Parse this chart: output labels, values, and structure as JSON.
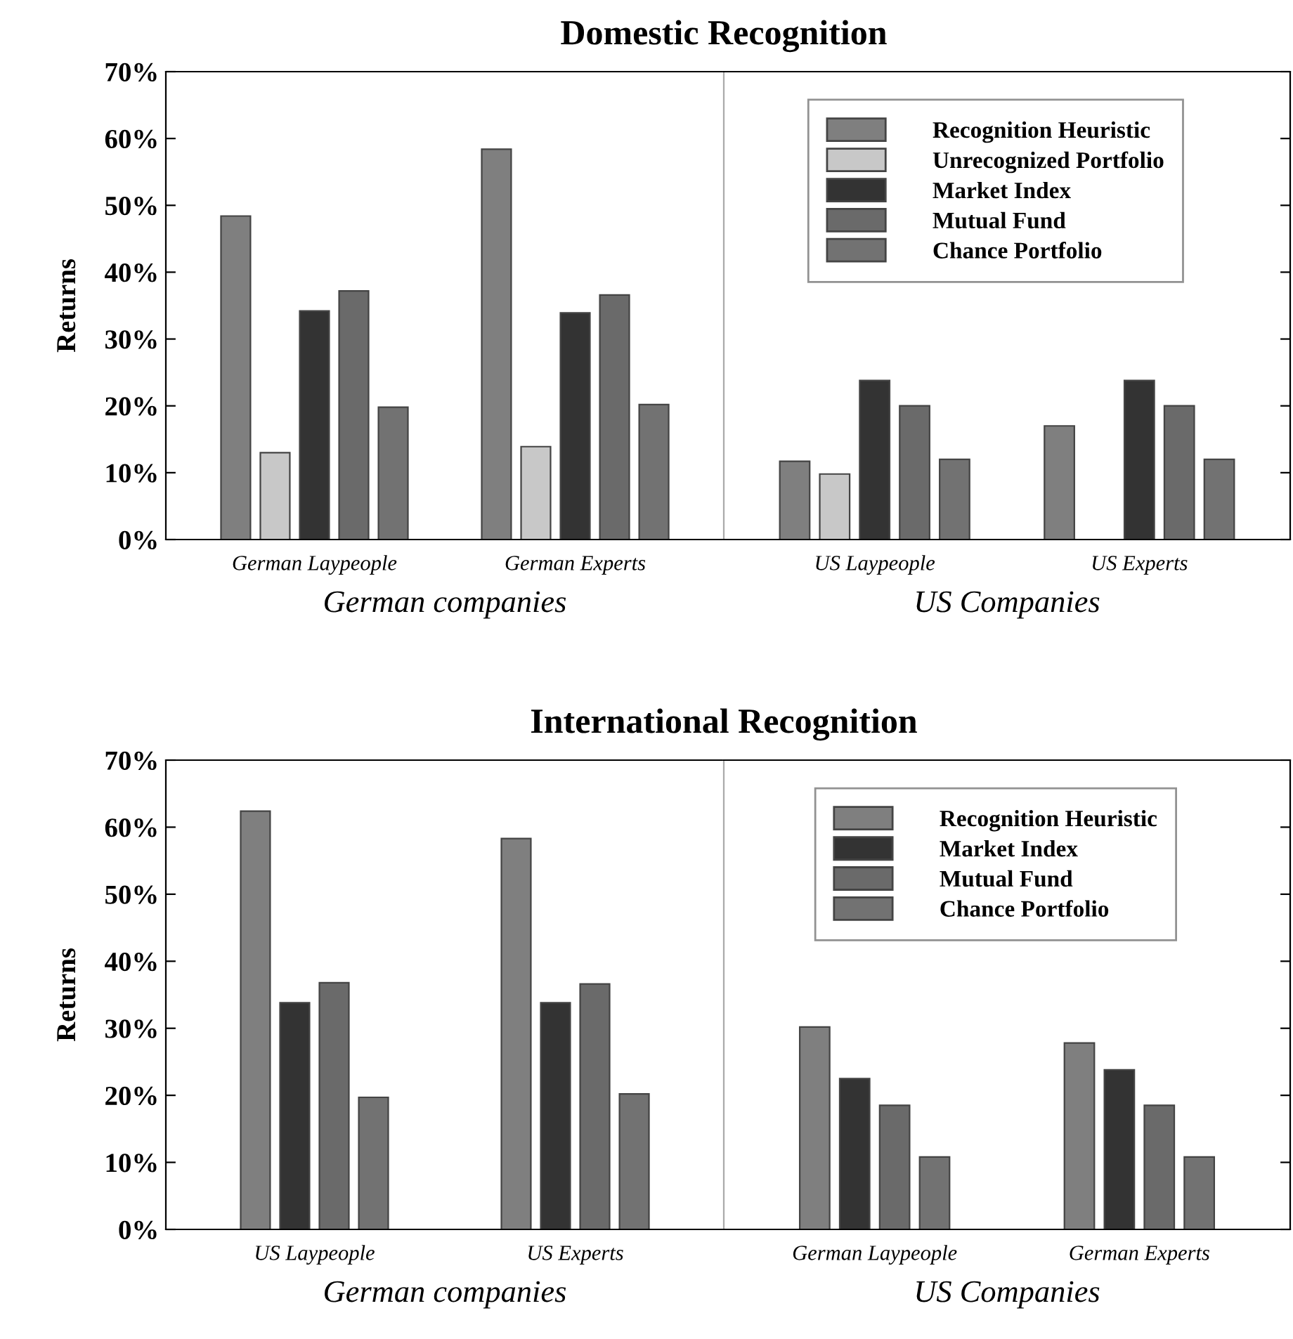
{
  "chart_data": [
    {
      "type": "bar",
      "title": "Domestic Recognition",
      "ylabel": "Returns",
      "xlabel": "German companies",
      "categories": [
        "German Laypeople",
        "German Experts"
      ],
      "series": [
        {
          "color": "#7f7f7f",
          "values": [
            48.4,
            58.4
          ]
        },
        {
          "color": "#c8c8c8",
          "values": [
            13.0,
            13.9
          ]
        },
        {
          "color": "#333333",
          "values": [
            34.2,
            33.9
          ]
        },
        {
          "color": "#6a6a6a",
          "values": [
            37.2,
            36.6
          ]
        },
        {
          "color": "#727272",
          "values": [
            19.8,
            20.2
          ]
        }
      ],
      "ylim": [
        0,
        70
      ],
      "yticks": [
        {
          "value": 0,
          "label": "0%"
        },
        {
          "value": 10,
          "label": "10%"
        },
        {
          "value": 20,
          "label": "20%"
        },
        {
          "value": 30,
          "label": "30%"
        },
        {
          "value": 40,
          "label": "40%"
        },
        {
          "value": 50,
          "label": "50%"
        },
        {
          "value": 60,
          "label": "60%"
        },
        {
          "value": 70,
          "label": "70%"
        }
      ]
    },
    {
      "type": "bar",
      "xlabel": "US Companies",
      "categories": [
        "US Laypeople",
        "US Experts"
      ],
      "series": [
        {
          "name": "Recognition Heuristic",
          "color": "#7f7f7f",
          "values": [
            11.7,
            17.0
          ]
        },
        {
          "name": "Unrecognized Portfolio",
          "color": "#c8c8c8",
          "values": [
            9.8,
            null
          ]
        },
        {
          "name": "Market Index",
          "color": "#333333",
          "values": [
            23.8,
            23.8
          ]
        },
        {
          "name": "Mutual Fund",
          "color": "#6a6a6a",
          "values": [
            20.0,
            20.0
          ]
        },
        {
          "name": "Chance Portfolio",
          "color": "#727272",
          "values": [
            12.0,
            12.0
          ]
        }
      ],
      "ylim": [
        0,
        70
      ],
      "yticks": [
        {
          "value": 0,
          "label": null
        },
        {
          "value": 10,
          "label": null
        },
        {
          "value": 20,
          "label": null
        },
        {
          "value": 30,
          "label": null
        },
        {
          "value": 40,
          "label": null
        },
        {
          "value": 50,
          "label": null
        },
        {
          "value": 60,
          "label": null
        },
        {
          "value": 70,
          "label": null
        }
      ],
      "tick_labels": "x",
      "legend": "top"
    },
    {
      "type": "bar",
      "title": "International Recognition",
      "ylabel": "Returns",
      "xlabel": "German companies",
      "categories": [
        "US Laypeople",
        "US Experts"
      ],
      "series": [
        {
          "color": "#7f7f7f",
          "values": [
            62.4,
            58.3
          ]
        },
        {
          "color": "#333333",
          "values": [
            33.8,
            33.8
          ]
        },
        {
          "color": "#6a6a6a",
          "values": [
            36.8,
            36.6
          ]
        },
        {
          "color": "#727272",
          "values": [
            19.7,
            20.2
          ]
        }
      ],
      "ylim": [
        0,
        70
      ],
      "yticks": [
        {
          "value": 0,
          "label": "0%"
        },
        {
          "value": 10,
          "label": "10%"
        },
        {
          "value": 20,
          "label": "20%"
        },
        {
          "value": 30,
          "label": "30%"
        },
        {
          "value": 40,
          "label": "40%"
        },
        {
          "value": 50,
          "label": "50%"
        },
        {
          "value": 60,
          "label": "60%"
        },
        {
          "value": 70,
          "label": "70%"
        }
      ]
    },
    {
      "type": "bar",
      "xlabel": "US Companies",
      "categories": [
        "German Laypeople",
        "German Experts"
      ],
      "series": [
        {
          "name": "Recognition Heuristic",
          "color": "#7f7f7f",
          "values": [
            30.2,
            27.8
          ]
        },
        {
          "name": "Market Index",
          "color": "#333333",
          "values": [
            22.5,
            23.8
          ]
        },
        {
          "name": "Mutual Fund",
          "color": "#6a6a6a",
          "values": [
            18.5,
            18.5
          ]
        },
        {
          "name": "Chance Portfolio",
          "color": "#727272",
          "values": [
            10.8,
            10.8
          ]
        }
      ],
      "ylim": [
        0,
        70
      ],
      "yticks": [
        {
          "value": 0,
          "label": null
        },
        {
          "value": 10,
          "label": null
        },
        {
          "value": 20,
          "label": null
        },
        {
          "value": 30,
          "label": null
        },
        {
          "value": 40,
          "label": null
        },
        {
          "value": 50,
          "label": null
        },
        {
          "value": 60,
          "label": null
        },
        {
          "value": 70,
          "label": null
        }
      ],
      "tick_labels": "x",
      "legend": "top"
    }
  ]
}
